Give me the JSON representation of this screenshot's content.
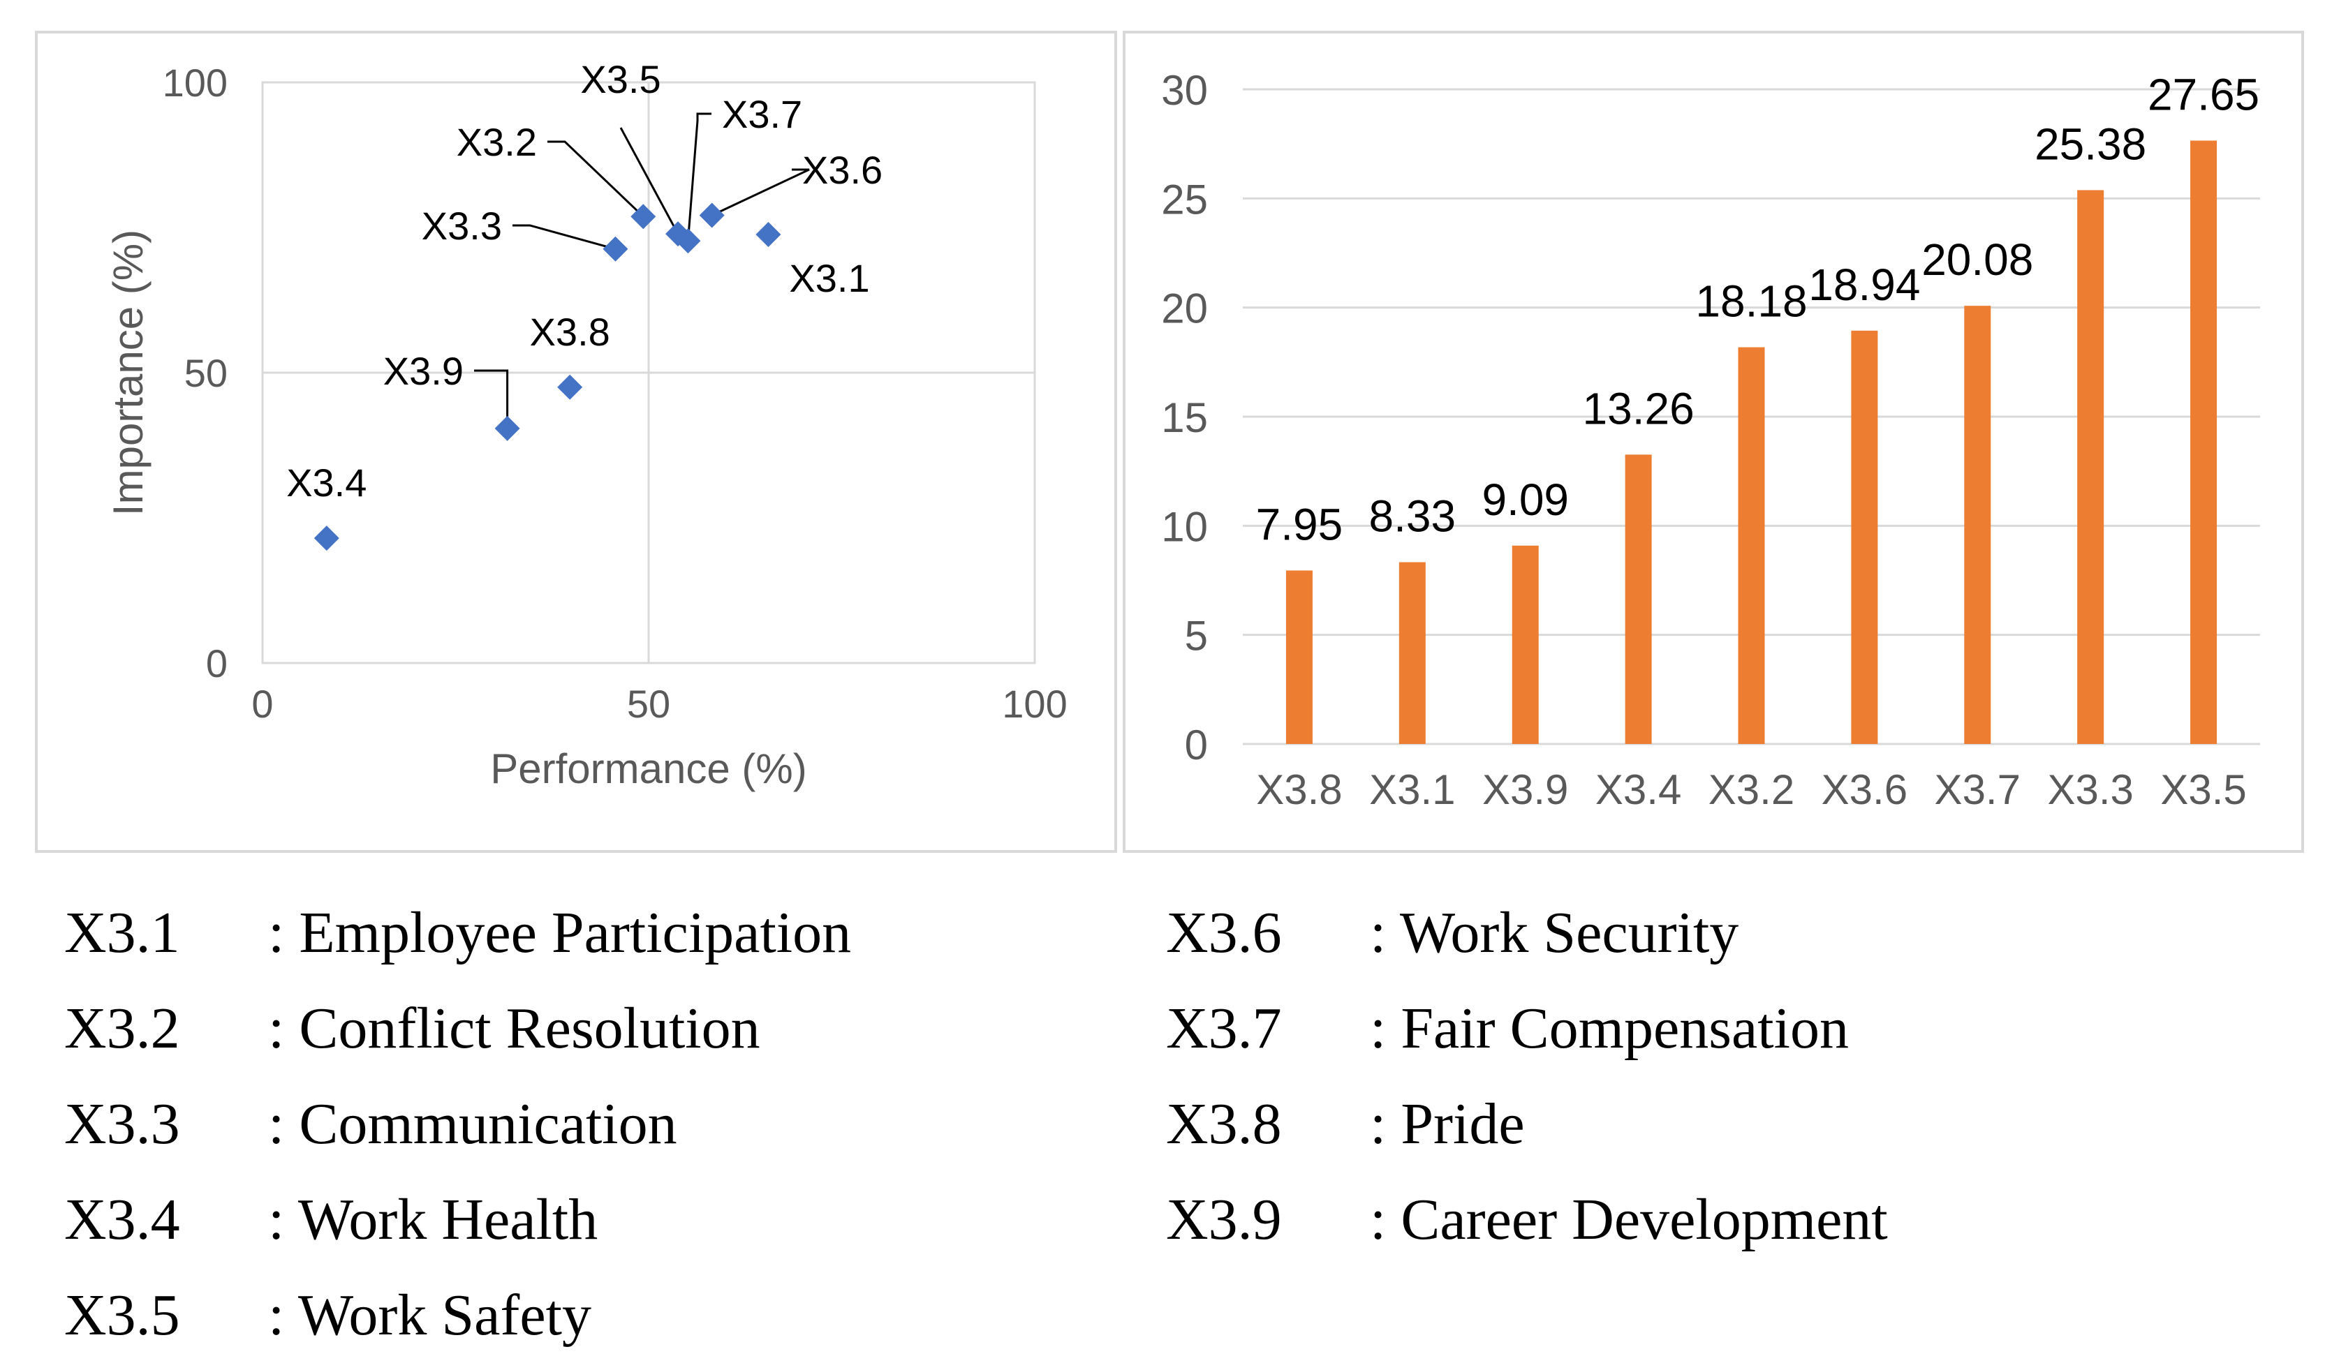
{
  "chart_data": [
    {
      "type": "scatter",
      "title": "",
      "xlabel": "Performance (%)",
      "ylabel": "Importance (%)",
      "xlim": [
        0,
        100
      ],
      "ylim": [
        0,
        100
      ],
      "xticks": [
        "0",
        "50",
        "100"
      ],
      "yticks": [
        "0",
        "50",
        "100"
      ],
      "grid": true,
      "marker_color": "#4472C4",
      "points": [
        {
          "label": "X3.1",
          "x": 65.5,
          "y": 73.8
        },
        {
          "label": "X3.2",
          "x": 49.3,
          "y": 76.9
        },
        {
          "label": "X3.3",
          "x": 45.7,
          "y": 71.3
        },
        {
          "label": "X3.4",
          "x": 8.3,
          "y": 21.5
        },
        {
          "label": "X3.5",
          "x": 53.8,
          "y": 73.9
        },
        {
          "label": "X3.6",
          "x": 58.2,
          "y": 77.1
        },
        {
          "label": "X3.7",
          "x": 55.1,
          "y": 72.7
        },
        {
          "label": "X3.8",
          "x": 39.8,
          "y": 47.5
        },
        {
          "label": "X3.9",
          "x": 31.7,
          "y": 40.4
        }
      ]
    },
    {
      "type": "bar",
      "title": "",
      "xlabel": "",
      "ylabel": "",
      "ylim": [
        0,
        30
      ],
      "yticks": [
        "0",
        "5",
        "10",
        "15",
        "20",
        "25",
        "30"
      ],
      "grid": true,
      "bar_color": "#ED7D31",
      "categories": [
        "X3.8",
        "X3.1",
        "X3.9",
        "X3.4",
        "X3.2",
        "X3.6",
        "X3.7",
        "X3.3",
        "X3.5"
      ],
      "values": [
        7.95,
        8.33,
        9.09,
        13.26,
        18.18,
        18.94,
        20.08,
        25.38,
        27.65
      ],
      "value_labels": [
        "7.95",
        "8.33",
        "9.09",
        "13.26",
        "18.18",
        "18.94",
        "20.08",
        "25.38",
        "27.65"
      ]
    }
  ],
  "legend": {
    "left": [
      {
        "code": "X3.1",
        "desc": ": Employee Participation"
      },
      {
        "code": "X3.2",
        "desc": ": Conflict Resolution"
      },
      {
        "code": "X3.3",
        "desc": ": Communication"
      },
      {
        "code": "X3.4",
        "desc": ": Work Health"
      },
      {
        "code": "X3.5",
        "desc": ": Work Safety"
      }
    ],
    "right": [
      {
        "code": "X3.6",
        "desc": ": Work Security"
      },
      {
        "code": "X3.7",
        "desc": ": Fair Compensation"
      },
      {
        "code": "X3.8",
        "desc": ": Pride"
      },
      {
        "code": "X3.9",
        "desc": ": Career Development"
      }
    ]
  }
}
